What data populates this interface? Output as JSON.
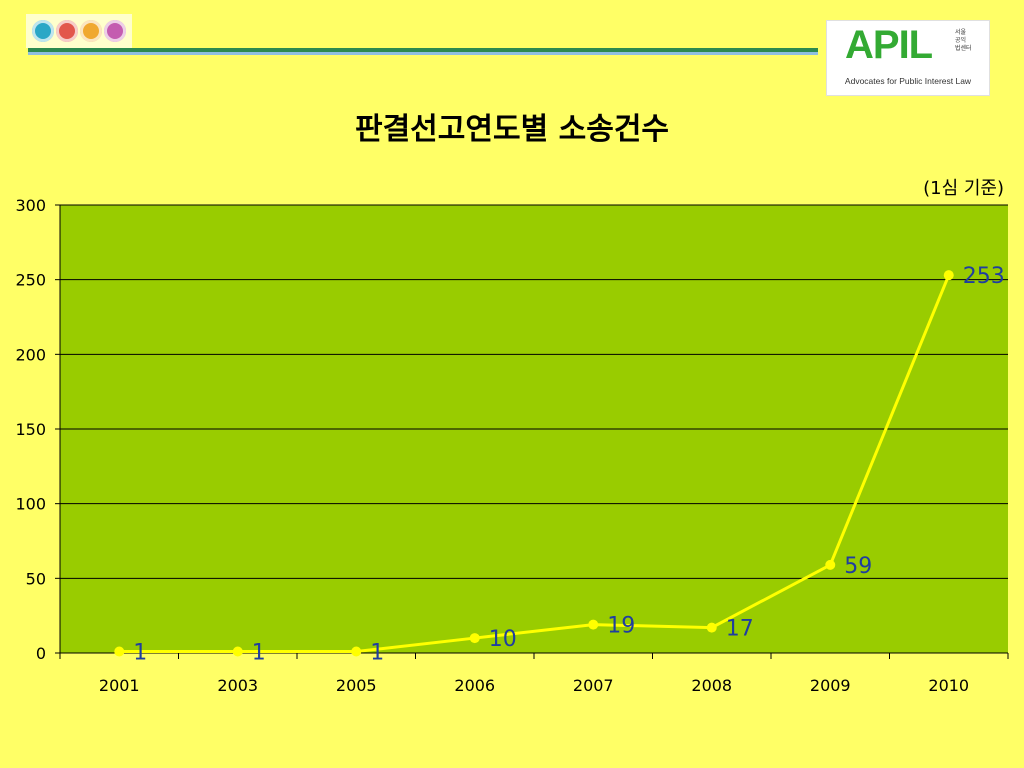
{
  "header": {
    "logo_colors": [
      "#2aa7c6",
      "#e2574c",
      "#f0a830",
      "#c45cb0"
    ],
    "brand": {
      "word": "APIL",
      "korean_lines": [
        "서울",
        "공익",
        "법센터"
      ],
      "subtitle": "Advocates for Public Interest Law",
      "color": "#33aa33"
    }
  },
  "chart_data": {
    "type": "line",
    "title": "판결선고연도별 소송건수",
    "note": "(1심 기준)",
    "categories": [
      "2001",
      "2003",
      "2005",
      "2006",
      "2007",
      "2008",
      "2009",
      "2010"
    ],
    "series": [
      {
        "values": [
          1,
          1,
          1,
          10,
          19,
          17,
          59,
          253
        ]
      }
    ],
    "data_labels": [
      "1",
      "1",
      "1",
      "10",
      "19",
      "17",
      "59",
      "253"
    ],
    "ylim": [
      0,
      300
    ],
    "y_ticks": [
      "0",
      "50",
      "100",
      "150",
      "200",
      "250",
      "300"
    ],
    "grid": true,
    "colors": {
      "plot_bg": "#99cc00",
      "line": "#ffff00",
      "label": "#1f3ea0",
      "grid": "#000000"
    }
  }
}
